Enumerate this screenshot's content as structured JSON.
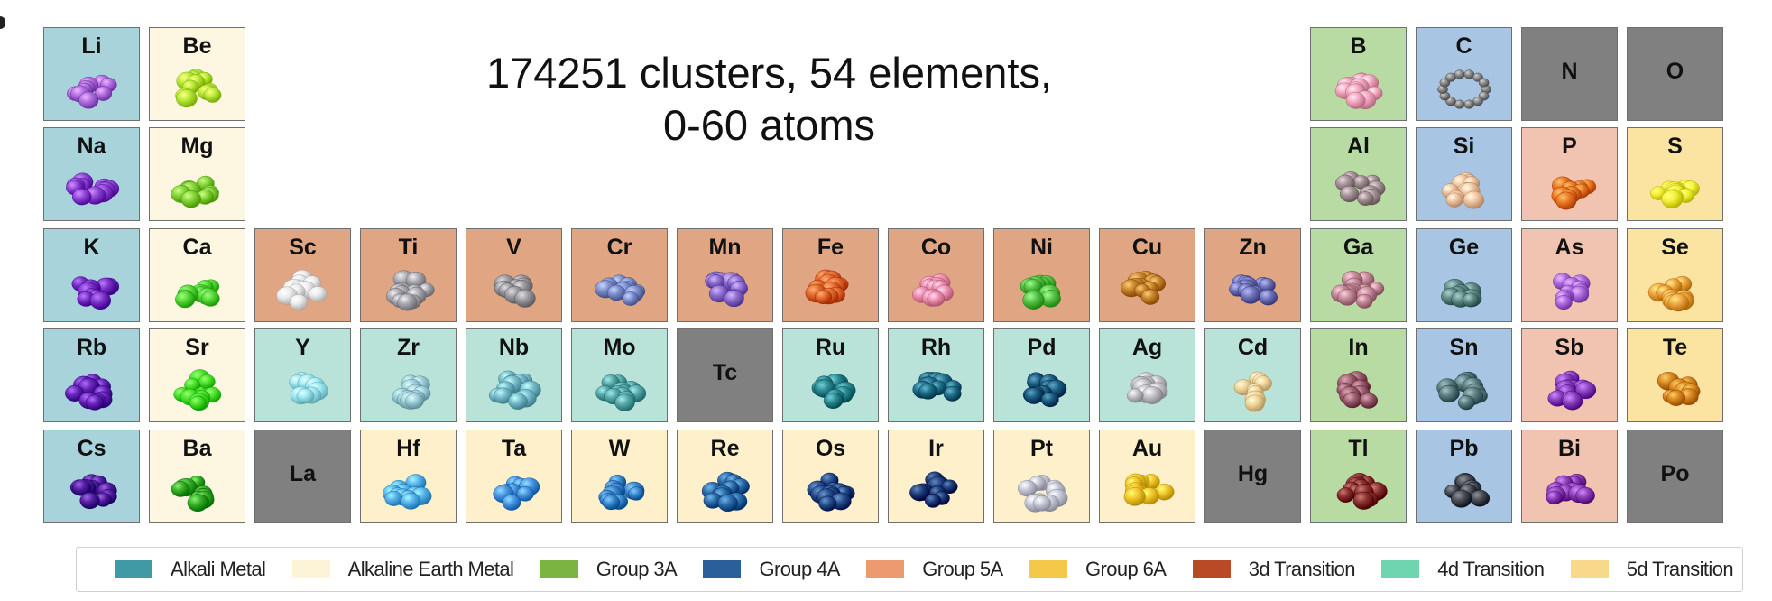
{
  "title": {
    "line1": "174251 clusters, 54 elements,",
    "line2": "0-60 atoms"
  },
  "colors": {
    "alkali": "#a9d3db",
    "alkaline_earth": "#fdf6e0",
    "group3a": "#b8dba4",
    "group4a": "#a9c5e4",
    "group5a": "#f1c4b2",
    "group6a": "#fbe4a2",
    "transition3d": "#e0a583",
    "transition4d": "#b9e3d8",
    "transition5d": "#fdf0cb",
    "empty": "#808080"
  },
  "elements": [
    {
      "symbol": "Li",
      "row": 0,
      "col": 0,
      "group": "alkali",
      "cluster_color": "#b06fe0"
    },
    {
      "symbol": "Be",
      "row": 0,
      "col": 1,
      "group": "alkaline_earth",
      "cluster_color": "#b8ea3a"
    },
    {
      "symbol": "B",
      "row": 0,
      "col": 12,
      "group": "group3a",
      "cluster_color": "#f3a8bf"
    },
    {
      "symbol": "C",
      "row": 0,
      "col": 13,
      "group": "group4a",
      "cluster_color": "#8c8c8c",
      "shape": "ring"
    },
    {
      "symbol": "N",
      "row": 0,
      "col": 14,
      "group": "empty"
    },
    {
      "symbol": "O",
      "row": 0,
      "col": 15,
      "group": "empty"
    },
    {
      "symbol": "Na",
      "row": 1,
      "col": 0,
      "group": "alkali",
      "cluster_color": "#8f47d8"
    },
    {
      "symbol": "Mg",
      "row": 1,
      "col": 1,
      "group": "alkaline_earth",
      "cluster_color": "#86d43c"
    },
    {
      "symbol": "Al",
      "row": 1,
      "col": 12,
      "group": "group3a",
      "cluster_color": "#a59498"
    },
    {
      "symbol": "Si",
      "row": 1,
      "col": 13,
      "group": "group4a",
      "cluster_color": "#f2c5a2"
    },
    {
      "symbol": "P",
      "row": 1,
      "col": 14,
      "group": "group5a",
      "cluster_color": "#ea7a25"
    },
    {
      "symbol": "S",
      "row": 1,
      "col": 15,
      "group": "group6a",
      "cluster_color": "#f4f23a"
    },
    {
      "symbol": "K",
      "row": 2,
      "col": 0,
      "group": "alkali",
      "cluster_color": "#7a33c8"
    },
    {
      "symbol": "Ca",
      "row": 2,
      "col": 1,
      "group": "alkaline_earth",
      "cluster_color": "#57d83a"
    },
    {
      "symbol": "Sc",
      "row": 2,
      "col": 2,
      "group": "transition3d",
      "cluster_color": "#ececec"
    },
    {
      "symbol": "Ti",
      "row": 2,
      "col": 3,
      "group": "transition3d",
      "cluster_color": "#a8a8ae"
    },
    {
      "symbol": "V",
      "row": 2,
      "col": 4,
      "group": "transition3d",
      "cluster_color": "#9a9a9e"
    },
    {
      "symbol": "Cr",
      "row": 2,
      "col": 5,
      "group": "transition3d",
      "cluster_color": "#7f8fcc"
    },
    {
      "symbol": "Mn",
      "row": 2,
      "col": 6,
      "group": "transition3d",
      "cluster_color": "#8d6fd0"
    },
    {
      "symbol": "Fe",
      "row": 2,
      "col": 7,
      "group": "transition3d",
      "cluster_color": "#e36a2e"
    },
    {
      "symbol": "Co",
      "row": 2,
      "col": 8,
      "group": "transition3d",
      "cluster_color": "#ee92b0"
    },
    {
      "symbol": "Ni",
      "row": 2,
      "col": 9,
      "group": "transition3d",
      "cluster_color": "#5ac44a"
    },
    {
      "symbol": "Cu",
      "row": 2,
      "col": 10,
      "group": "transition3d",
      "cluster_color": "#c7862e"
    },
    {
      "symbol": "Zn",
      "row": 2,
      "col": 11,
      "group": "transition3d",
      "cluster_color": "#7276b8"
    },
    {
      "symbol": "Ga",
      "row": 2,
      "col": 12,
      "group": "group3a",
      "cluster_color": "#c38a99"
    },
    {
      "symbol": "Ge",
      "row": 2,
      "col": 13,
      "group": "group4a",
      "cluster_color": "#628a87"
    },
    {
      "symbol": "As",
      "row": 2,
      "col": 14,
      "group": "group5a",
      "cluster_color": "#ad6fe0"
    },
    {
      "symbol": "Se",
      "row": 2,
      "col": 15,
      "group": "group6a",
      "cluster_color": "#efa743"
    },
    {
      "symbol": "Rb",
      "row": 3,
      "col": 0,
      "group": "alkali",
      "cluster_color": "#6a26b8"
    },
    {
      "symbol": "Sr",
      "row": 3,
      "col": 1,
      "group": "alkaline_earth",
      "cluster_color": "#4fe42e"
    },
    {
      "symbol": "Y",
      "row": 3,
      "col": 2,
      "group": "transition4d",
      "cluster_color": "#9ee8f2"
    },
    {
      "symbol": "Zr",
      "row": 3,
      "col": 3,
      "group": "transition4d",
      "cluster_color": "#9ccdd8"
    },
    {
      "symbol": "Nb",
      "row": 3,
      "col": 4,
      "group": "transition4d",
      "cluster_color": "#7abccb"
    },
    {
      "symbol": "Mo",
      "row": 3,
      "col": 5,
      "group": "transition4d",
      "cluster_color": "#5aa8a8"
    },
    {
      "symbol": "Tc",
      "row": 3,
      "col": 6,
      "group": "empty"
    },
    {
      "symbol": "Ru",
      "row": 3,
      "col": 7,
      "group": "transition4d",
      "cluster_color": "#2e8a92"
    },
    {
      "symbol": "Rh",
      "row": 3,
      "col": 8,
      "group": "transition4d",
      "cluster_color": "#1e7088"
    },
    {
      "symbol": "Pd",
      "row": 3,
      "col": 9,
      "group": "transition4d",
      "cluster_color": "#1a5f82"
    },
    {
      "symbol": "Ag",
      "row": 3,
      "col": 10,
      "group": "transition4d",
      "cluster_color": "#c2c2c8"
    },
    {
      "symbol": "Cd",
      "row": 3,
      "col": 11,
      "group": "transition4d",
      "cluster_color": "#f2d59a"
    },
    {
      "symbol": "In",
      "row": 3,
      "col": 12,
      "group": "group3a",
      "cluster_color": "#9a6070"
    },
    {
      "symbol": "Sn",
      "row": 3,
      "col": 13,
      "group": "group4a",
      "cluster_color": "#5e7e82"
    },
    {
      "symbol": "Sb",
      "row": 3,
      "col": 14,
      "group": "group5a",
      "cluster_color": "#8a42c0"
    },
    {
      "symbol": "Te",
      "row": 3,
      "col": 15,
      "group": "group6a",
      "cluster_color": "#d78820"
    },
    {
      "symbol": "Cs",
      "row": 4,
      "col": 0,
      "group": "alkali",
      "cluster_color": "#561ea0"
    },
    {
      "symbol": "Ba",
      "row": 4,
      "col": 1,
      "group": "alkaline_earth",
      "cluster_color": "#3cae2a"
    },
    {
      "symbol": "La",
      "row": 4,
      "col": 2,
      "group": "empty"
    },
    {
      "symbol": "Hf",
      "row": 4,
      "col": 3,
      "group": "transition5d",
      "cluster_color": "#5ab2ec"
    },
    {
      "symbol": "Ta",
      "row": 4,
      "col": 4,
      "group": "transition5d",
      "cluster_color": "#4a96e2"
    },
    {
      "symbol": "W",
      "row": 4,
      "col": 5,
      "group": "transition5d",
      "cluster_color": "#3c86cc"
    },
    {
      "symbol": "Re",
      "row": 4,
      "col": 6,
      "group": "transition5d",
      "cluster_color": "#2c6ea8"
    },
    {
      "symbol": "Os",
      "row": 4,
      "col": 7,
      "group": "transition5d",
      "cluster_color": "#244f8a"
    },
    {
      "symbol": "Ir",
      "row": 4,
      "col": 8,
      "group": "transition5d",
      "cluster_color": "#1c3f7a"
    },
    {
      "symbol": "Pt",
      "row": 4,
      "col": 9,
      "group": "transition5d",
      "cluster_color": "#c6c8d8"
    },
    {
      "symbol": "Au",
      "row": 4,
      "col": 10,
      "group": "transition5d",
      "cluster_color": "#f2c92e"
    },
    {
      "symbol": "Hg",
      "row": 4,
      "col": 11,
      "group": "empty"
    },
    {
      "symbol": "Tl",
      "row": 4,
      "col": 12,
      "group": "group3a",
      "cluster_color": "#8a3232"
    },
    {
      "symbol": "Pb",
      "row": 4,
      "col": 13,
      "group": "group4a",
      "cluster_color": "#4a4e56"
    },
    {
      "symbol": "Bi",
      "row": 4,
      "col": 14,
      "group": "group5a",
      "cluster_color": "#8e42b8"
    },
    {
      "symbol": "Po",
      "row": 4,
      "col": 15,
      "group": "empty"
    }
  ],
  "legend": [
    {
      "label": "Alkali Metal",
      "color": "#3f9aa6"
    },
    {
      "label": "Alkaline Earth Metal",
      "color": "#fdf3d6"
    },
    {
      "label": "Group 3A",
      "color": "#7bb440"
    },
    {
      "label": "Group 4A",
      "color": "#2a5f9c"
    },
    {
      "label": "Group 5A",
      "color": "#ee9a70"
    },
    {
      "label": "Group 6A",
      "color": "#f5c84a"
    },
    {
      "label": "3d Transition",
      "color": "#b84a26"
    },
    {
      "label": "4d Transition",
      "color": "#6fd4b0"
    },
    {
      "label": "5d Transition",
      "color": "#f8d98c"
    }
  ]
}
